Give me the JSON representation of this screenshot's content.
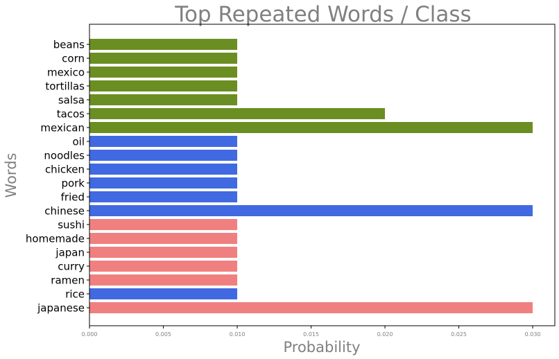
{
  "chart_data": {
    "type": "bar",
    "orientation": "horizontal",
    "title": "Top Repeated Words / Class",
    "xlabel": "Probability",
    "ylabel": "Words",
    "xlim": [
      0.0,
      0.0315
    ],
    "xticks": [
      "0.000",
      "0.005",
      "0.010",
      "0.015",
      "0.020",
      "0.025",
      "0.030"
    ],
    "xtick_values": [
      0.0,
      0.005,
      0.01,
      0.015,
      0.02,
      0.025,
      0.03
    ],
    "grid": false,
    "legend": "none",
    "colors": {
      "mexican": "#6b8e23",
      "chinese": "#4169e1",
      "japanese": "#f08080"
    },
    "bars": [
      {
        "category": "beans",
        "value": 0.01,
        "color_key": "mexican"
      },
      {
        "category": "corn",
        "value": 0.01,
        "color_key": "mexican"
      },
      {
        "category": "mexico",
        "value": 0.01,
        "color_key": "mexican"
      },
      {
        "category": "tortillas",
        "value": 0.01,
        "color_key": "mexican"
      },
      {
        "category": "salsa",
        "value": 0.01,
        "color_key": "mexican"
      },
      {
        "category": "tacos",
        "value": 0.02,
        "color_key": "mexican"
      },
      {
        "category": "mexican",
        "value": 0.03,
        "color_key": "mexican"
      },
      {
        "category": "oil",
        "value": 0.01,
        "color_key": "chinese"
      },
      {
        "category": "noodles",
        "value": 0.01,
        "color_key": "chinese"
      },
      {
        "category": "chicken",
        "value": 0.01,
        "color_key": "chinese"
      },
      {
        "category": "pork",
        "value": 0.01,
        "color_key": "chinese"
      },
      {
        "category": "fried",
        "value": 0.01,
        "color_key": "chinese"
      },
      {
        "category": "chinese",
        "value": 0.03,
        "color_key": "chinese"
      },
      {
        "category": "sushi",
        "value": 0.01,
        "color_key": "japanese"
      },
      {
        "category": "homemade",
        "value": 0.01,
        "color_key": "japanese"
      },
      {
        "category": "japan",
        "value": 0.01,
        "color_key": "japanese"
      },
      {
        "category": "curry",
        "value": 0.01,
        "color_key": "japanese"
      },
      {
        "category": "ramen",
        "value": 0.01,
        "color_key": "japanese"
      },
      {
        "category": "rice",
        "value": 0.01,
        "color_key": "chinese"
      },
      {
        "category": "japanese",
        "value": 0.03,
        "color_key": "japanese"
      }
    ]
  }
}
